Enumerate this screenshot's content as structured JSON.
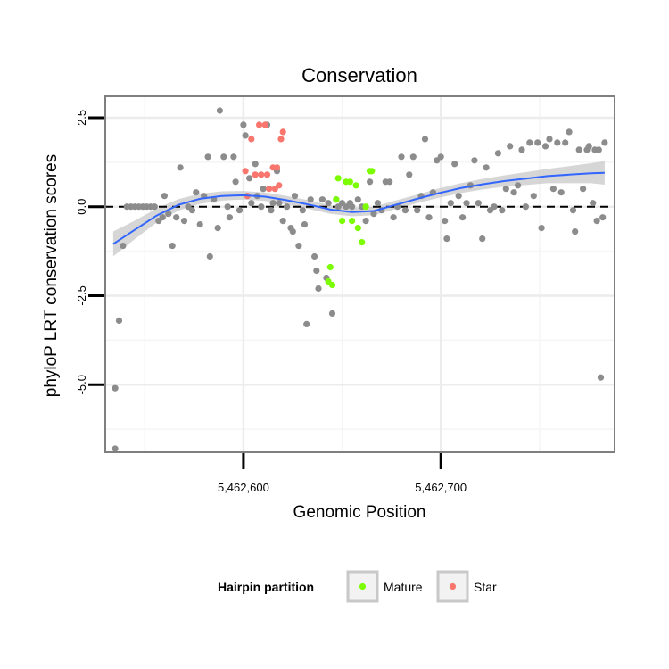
{
  "chart_data": {
    "type": "scatter",
    "title": "Conservation",
    "xlabel": "Genomic Position",
    "ylabel": "phyloP LRT conservation scores",
    "xlim": [
      5462530,
      5462788
    ],
    "ylim": [
      -6.9,
      3.1
    ],
    "x_ticks": [
      5462600,
      5462700
    ],
    "x_tick_labels": [
      "5,462,600",
      "5,462,700"
    ],
    "y_ticks": [
      -5.0,
      -2.5,
      0.0,
      2.5
    ],
    "y_tick_labels": [
      "-5.0",
      "-2.5",
      "0.0",
      "2.5"
    ],
    "grid": true,
    "reference_line": {
      "y": 0,
      "style": "dashed",
      "color": "#000000"
    },
    "legend": {
      "title": "Hairpin partition",
      "position": "bottom",
      "entries": [
        {
          "label": "Mature",
          "color": "#7cfc00"
        },
        {
          "label": "Star",
          "color": "#f8766d"
        }
      ]
    },
    "colors": {
      "other": "#8c8c8c",
      "Mature": "#7cfc00",
      "Star": "#f8766d",
      "smooth": "#3366ff",
      "ribbon": "#c8c8c8"
    },
    "series": [
      {
        "group": "other",
        "points": [
          [
            5462535,
            -5.1
          ],
          [
            5462535,
            -6.8
          ],
          [
            5462537,
            -3.2
          ],
          [
            5462539,
            -1.1
          ],
          [
            5462541,
            0
          ],
          [
            5462543,
            0
          ],
          [
            5462545,
            0
          ],
          [
            5462547,
            0
          ],
          [
            5462549,
            0
          ],
          [
            5462551,
            0
          ],
          [
            5462553,
            0
          ],
          [
            5462555,
            0
          ],
          [
            5462557,
            -0.4
          ],
          [
            5462559,
            -0.3
          ],
          [
            5462560,
            0.3
          ],
          [
            5462562,
            -0.2
          ],
          [
            5462564,
            -1.1
          ],
          [
            5462566,
            -0.3
          ],
          [
            5462568,
            1.1
          ],
          [
            5462570,
            -0.4
          ],
          [
            5462572,
            0
          ],
          [
            5462574,
            -0.1
          ],
          [
            5462576,
            0.4
          ],
          [
            5462578,
            -0.5
          ],
          [
            5462580,
            0.3
          ],
          [
            5462582,
            1.4
          ],
          [
            5462583,
            -1.4
          ],
          [
            5462585,
            0.2
          ],
          [
            5462587,
            -0.6
          ],
          [
            5462588,
            2.7
          ],
          [
            5462590,
            1.4
          ],
          [
            5462592,
            0
          ],
          [
            5462593,
            -0.3
          ],
          [
            5462595,
            1.4
          ],
          [
            5462596,
            0.7
          ],
          [
            5462598,
            -0.1
          ],
          [
            5462600,
            2.3
          ],
          [
            5462601,
            2
          ],
          [
            5462603,
            0.8
          ],
          [
            5462604,
            0.1
          ],
          [
            5462606,
            1.2
          ],
          [
            5462607,
            0.3
          ],
          [
            5462609,
            0
          ],
          [
            5462610,
            0.5
          ],
          [
            5462612,
            2.3
          ],
          [
            5462614,
            -0.1
          ],
          [
            5462615,
            0.1
          ],
          [
            5462617,
            1
          ],
          [
            5462618,
            0.1
          ],
          [
            5462620,
            -0.4
          ],
          [
            5462622,
            0
          ],
          [
            5462624,
            -0.6
          ],
          [
            5462625,
            -0.7
          ],
          [
            5462626,
            0.3
          ],
          [
            5462628,
            -1.1
          ],
          [
            5462630,
            -0.1
          ],
          [
            5462631,
            -0.5
          ],
          [
            5462632,
            -3.3
          ],
          [
            5462634,
            0.2
          ],
          [
            5462636,
            -1.4
          ],
          [
            5462637,
            -1.8
          ],
          [
            5462638,
            -2.3
          ],
          [
            5462640,
            0.2
          ],
          [
            5462642,
            -2
          ],
          [
            5462643,
            0.1
          ],
          [
            5462645,
            -3
          ],
          [
            5462647,
            0.2
          ],
          [
            5462648,
            0
          ],
          [
            5462650,
            0.1
          ],
          [
            5462652,
            0
          ],
          [
            5462654,
            0.1
          ],
          [
            5462655,
            0
          ],
          [
            5462658,
            0.2
          ],
          [
            5462660,
            0
          ],
          [
            5462662,
            -0.4
          ],
          [
            5462664,
            0.7
          ],
          [
            5462666,
            -0.2
          ],
          [
            5462668,
            0.1
          ],
          [
            5462670,
            -0.1
          ],
          [
            5462672,
            0.7
          ],
          [
            5462674,
            0.7
          ],
          [
            5462676,
            -0.3
          ],
          [
            5462678,
            0
          ],
          [
            5462680,
            1.4
          ],
          [
            5462682,
            -0.1
          ],
          [
            5462684,
            0.9
          ],
          [
            5462686,
            1.4
          ],
          [
            5462688,
            -0.1
          ],
          [
            5462690,
            0.3
          ],
          [
            5462692,
            1.9
          ],
          [
            5462694,
            -0.3
          ],
          [
            5462696,
            0.4
          ],
          [
            5462698,
            1.3
          ],
          [
            5462700,
            1.4
          ],
          [
            5462702,
            -0.4
          ],
          [
            5462703,
            -0.9
          ],
          [
            5462705,
            0.1
          ],
          [
            5462707,
            1.2
          ],
          [
            5462709,
            0.3
          ],
          [
            5462711,
            -0.3
          ],
          [
            5462713,
            0.1
          ],
          [
            5462715,
            0.6
          ],
          [
            5462717,
            1.3
          ],
          [
            5462719,
            0.1
          ],
          [
            5462721,
            -0.9
          ],
          [
            5462723,
            1.1
          ],
          [
            5462725,
            -0.1
          ],
          [
            5462727,
            0
          ],
          [
            5462729,
            1.5
          ],
          [
            5462731,
            -0.1
          ],
          [
            5462733,
            0.5
          ],
          [
            5462735,
            1.7
          ],
          [
            5462737,
            0.4
          ],
          [
            5462739,
            0.6
          ],
          [
            5462741,
            1.6
          ],
          [
            5462743,
            0
          ],
          [
            5462745,
            1.8
          ],
          [
            5462747,
            0.3
          ],
          [
            5462749,
            1.8
          ],
          [
            5462751,
            -0.6
          ],
          [
            5462753,
            1.7
          ],
          [
            5462755,
            1.9
          ],
          [
            5462757,
            0.5
          ],
          [
            5462759,
            1.8
          ],
          [
            5462761,
            0.4
          ],
          [
            5462763,
            1.8
          ],
          [
            5462765,
            2.1
          ],
          [
            5462767,
            -0.1
          ],
          [
            5462768,
            -0.7
          ],
          [
            5462770,
            1.6
          ],
          [
            5462772,
            0.5
          ],
          [
            5462774,
            1.6
          ],
          [
            5462775,
            1.7
          ],
          [
            5462777,
            0.1
          ],
          [
            5462778,
            1.6
          ],
          [
            5462779,
            -0.4
          ],
          [
            5462780,
            1.6
          ],
          [
            5462781,
            -4.8
          ],
          [
            5462782,
            -0.3
          ],
          [
            5462783,
            1.8
          ]
        ]
      },
      {
        "group": "Mature",
        "points": [
          [
            5462643,
            -2.1
          ],
          [
            5462644,
            -1.7
          ],
          [
            5462645,
            -2.2
          ],
          [
            5462647,
            0.2
          ],
          [
            5462648,
            0.8
          ],
          [
            5462650,
            -0.4
          ],
          [
            5462652,
            0.7
          ],
          [
            5462654,
            0.7
          ],
          [
            5462655,
            -0.4
          ],
          [
            5462657,
            0.6
          ],
          [
            5462658,
            -0.6
          ],
          [
            5462660,
            -1
          ],
          [
            5462662,
            0
          ],
          [
            5462664,
            1
          ],
          [
            5462665,
            1
          ]
        ]
      },
      {
        "group": "Star",
        "points": [
          [
            5462601,
            1
          ],
          [
            5462602,
            0.3
          ],
          [
            5462604,
            1.9
          ],
          [
            5462606,
            0.9
          ],
          [
            5462608,
            2.3
          ],
          [
            5462609,
            0.9
          ],
          [
            5462611,
            2.3
          ],
          [
            5462612,
            0.9
          ],
          [
            5462613,
            0.5
          ],
          [
            5462615,
            1.1
          ],
          [
            5462616,
            0.5
          ],
          [
            5462617,
            1.1
          ],
          [
            5462618,
            0.6
          ],
          [
            5462619,
            1.9
          ],
          [
            5462620,
            2.1
          ]
        ]
      }
    ],
    "smooth": {
      "x": [
        5462534,
        5462545,
        5462556,
        5462567,
        5462578,
        5462589,
        5462600,
        5462611,
        5462622,
        5462633,
        5462644,
        5462655,
        5462666,
        5462677,
        5462688,
        5462699,
        5462710,
        5462721,
        5462732,
        5462743,
        5462754,
        5462765,
        5462776,
        5462783
      ],
      "y": [
        -1.05,
        -0.65,
        -0.25,
        0.05,
        0.22,
        0.3,
        0.32,
        0.28,
        0.18,
        0.06,
        -0.08,
        -0.15,
        -0.12,
        0.05,
        0.22,
        0.38,
        0.52,
        0.63,
        0.72,
        0.79,
        0.86,
        0.9,
        0.94,
        0.95
      ],
      "ci": [
        0.35,
        0.26,
        0.2,
        0.16,
        0.14,
        0.13,
        0.12,
        0.12,
        0.12,
        0.12,
        0.12,
        0.12,
        0.12,
        0.12,
        0.12,
        0.13,
        0.14,
        0.15,
        0.16,
        0.18,
        0.2,
        0.24,
        0.28,
        0.33
      ]
    }
  }
}
